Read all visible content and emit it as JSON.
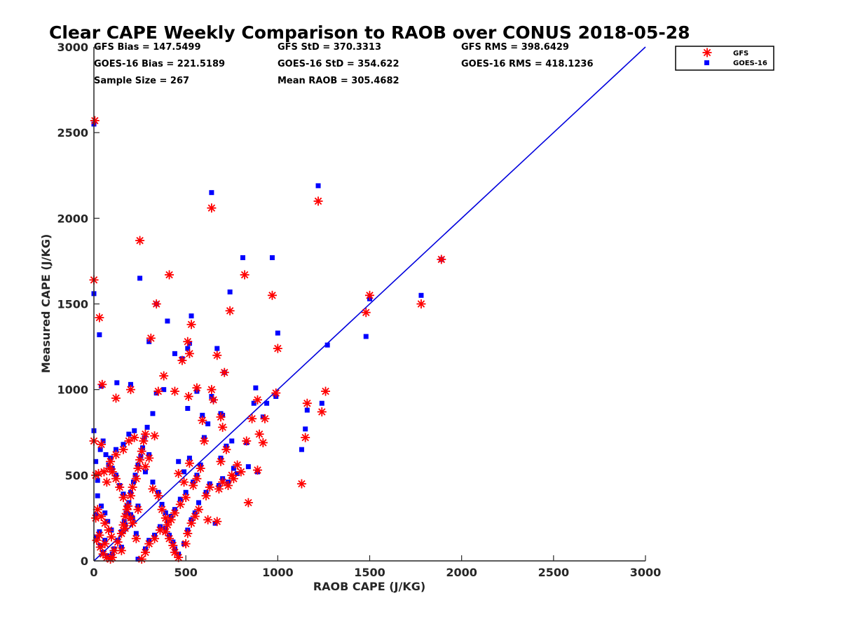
{
  "chart_data": {
    "type": "scatter",
    "title": "Clear CAPE Weekly Comparison to RAOB over CONUS 2018-05-28",
    "xlabel": "RAOB CAPE (J/KG)",
    "ylabel": "Measured CAPE (J/KG)",
    "xlim": [
      0,
      3000
    ],
    "ylim": [
      0,
      3000
    ],
    "xticks": [
      "0",
      "500",
      "1000",
      "1500",
      "2000",
      "2500",
      "3000"
    ],
    "yticks": [
      "0",
      "500",
      "1000",
      "1500",
      "2000",
      "2500",
      "3000"
    ],
    "grid": false,
    "legend_position": "top-right",
    "stats": [
      "GFS Bias = 147.5499",
      "GFS StD = 370.3313",
      "GFS RMS = 398.6429",
      "GOES-16 Bias = 221.5189",
      "GOES-16 StD = 354.622",
      "GOES-16 RMS = 418.1236",
      "Sample Size = 267",
      "Mean RAOB = 305.4682"
    ],
    "reference_line": {
      "x": [
        0,
        3000
      ],
      "y": [
        0,
        3000
      ],
      "color": "#0000dd"
    },
    "series": [
      {
        "name": "GFS",
        "marker": "asterisk",
        "color": "#ff0000",
        "points": [
          [
            5,
            2570
          ],
          [
            0,
            1640
          ],
          [
            30,
            1420
          ],
          [
            45,
            1030
          ],
          [
            0,
            700
          ],
          [
            10,
            500
          ],
          [
            25,
            510
          ],
          [
            40,
            680
          ],
          [
            55,
            520
          ],
          [
            70,
            460
          ],
          [
            85,
            540
          ],
          [
            20,
            300
          ],
          [
            40,
            260
          ],
          [
            60,
            220
          ],
          [
            80,
            180
          ],
          [
            95,
            140
          ],
          [
            15,
            120
          ],
          [
            35,
            80
          ],
          [
            50,
            40
          ],
          [
            70,
            20
          ],
          [
            90,
            10
          ],
          [
            110,
            60
          ],
          [
            130,
            110
          ],
          [
            150,
            160
          ],
          [
            160,
            210
          ],
          [
            170,
            260
          ],
          [
            185,
            320
          ],
          [
            200,
            380
          ],
          [
            210,
            430
          ],
          [
            230,
            480
          ],
          [
            240,
            540
          ],
          [
            250,
            590
          ],
          [
            260,
            640
          ],
          [
            270,
            700
          ],
          [
            280,
            740
          ],
          [
            120,
            950
          ],
          [
            200,
            1000
          ],
          [
            250,
            1870
          ],
          [
            310,
            1300
          ],
          [
            340,
            1500
          ],
          [
            410,
            1670
          ],
          [
            380,
            1080
          ],
          [
            350,
            990
          ],
          [
            330,
            730
          ],
          [
            300,
            600
          ],
          [
            280,
            550
          ],
          [
            320,
            420
          ],
          [
            350,
            380
          ],
          [
            370,
            300
          ],
          [
            390,
            250
          ],
          [
            360,
            180
          ],
          [
            330,
            130
          ],
          [
            300,
            100
          ],
          [
            280,
            50
          ],
          [
            260,
            10
          ],
          [
            230,
            130
          ],
          [
            210,
            220
          ],
          [
            180,
            300
          ],
          [
            160,
            370
          ],
          [
            140,
            430
          ],
          [
            120,
            480
          ],
          [
            100,
            520
          ],
          [
            90,
            580
          ],
          [
            120,
            620
          ],
          [
            160,
            650
          ],
          [
            190,
            700
          ],
          [
            220,
            720
          ],
          [
            440,
            990
          ],
          [
            480,
            1170
          ],
          [
            510,
            1280
          ],
          [
            520,
            1210
          ],
          [
            530,
            1380
          ],
          [
            515,
            960
          ],
          [
            560,
            1010
          ],
          [
            590,
            820
          ],
          [
            600,
            700
          ],
          [
            580,
            540
          ],
          [
            560,
            480
          ],
          [
            540,
            440
          ],
          [
            500,
            370
          ],
          [
            470,
            330
          ],
          [
            440,
            280
          ],
          [
            420,
            240
          ],
          [
            400,
            210
          ],
          [
            390,
            170
          ],
          [
            410,
            130
          ],
          [
            430,
            90
          ],
          [
            440,
            50
          ],
          [
            460,
            20
          ],
          [
            500,
            100
          ],
          [
            510,
            160
          ],
          [
            530,
            220
          ],
          [
            550,
            260
          ],
          [
            570,
            300
          ],
          [
            610,
            380
          ],
          [
            630,
            430
          ],
          [
            640,
            2060
          ],
          [
            640,
            1000
          ],
          [
            650,
            940
          ],
          [
            670,
            1200
          ],
          [
            690,
            840
          ],
          [
            700,
            780
          ],
          [
            710,
            1100
          ],
          [
            740,
            1460
          ],
          [
            720,
            650
          ],
          [
            690,
            580
          ],
          [
            680,
            420
          ],
          [
            700,
            460
          ],
          [
            730,
            440
          ],
          [
            760,
            480
          ],
          [
            780,
            560
          ],
          [
            800,
            520
          ],
          [
            820,
            1670
          ],
          [
            830,
            700
          ],
          [
            840,
            340
          ],
          [
            860,
            830
          ],
          [
            890,
            940
          ],
          [
            900,
            740
          ],
          [
            920,
            690
          ],
          [
            930,
            830
          ],
          [
            970,
            1550
          ],
          [
            990,
            980
          ],
          [
            1000,
            1240
          ],
          [
            1130,
            450
          ],
          [
            1150,
            720
          ],
          [
            1160,
            920
          ],
          [
            1240,
            870
          ],
          [
            1260,
            990
          ],
          [
            1220,
            2100
          ],
          [
            1480,
            1450
          ],
          [
            1500,
            1550
          ],
          [
            1780,
            1500
          ],
          [
            1890,
            1760
          ],
          [
            620,
            240
          ],
          [
            670,
            230
          ],
          [
            750,
            500
          ],
          [
            890,
            530
          ],
          [
            490,
            460
          ],
          [
            460,
            510
          ],
          [
            520,
            570
          ],
          [
            240,
            300
          ],
          [
            200,
            250
          ],
          [
            170,
            190
          ],
          [
            150,
            60
          ],
          [
            100,
            20
          ],
          [
            10,
            250
          ],
          [
            30,
            150
          ],
          [
            60,
            100
          ]
        ]
      },
      {
        "name": "GOES-16",
        "marker": "square",
        "color": "#0000ff",
        "points": [
          [
            0,
            2550
          ],
          [
            0,
            1560
          ],
          [
            30,
            1320
          ],
          [
            40,
            1020
          ],
          [
            0,
            760
          ],
          [
            10,
            580
          ],
          [
            20,
            470
          ],
          [
            35,
            650
          ],
          [
            50,
            700
          ],
          [
            65,
            620
          ],
          [
            80,
            560
          ],
          [
            20,
            380
          ],
          [
            40,
            320
          ],
          [
            60,
            280
          ],
          [
            75,
            230
          ],
          [
            95,
            180
          ],
          [
            15,
            140
          ],
          [
            35,
            90
          ],
          [
            50,
            50
          ],
          [
            70,
            30
          ],
          [
            90,
            15
          ],
          [
            110,
            70
          ],
          [
            130,
            120
          ],
          [
            150,
            170
          ],
          [
            165,
            230
          ],
          [
            175,
            280
          ],
          [
            190,
            340
          ],
          [
            200,
            400
          ],
          [
            215,
            460
          ],
          [
            225,
            500
          ],
          [
            240,
            560
          ],
          [
            255,
            610
          ],
          [
            265,
            660
          ],
          [
            275,
            720
          ],
          [
            290,
            780
          ],
          [
            125,
            1040
          ],
          [
            200,
            1030
          ],
          [
            250,
            1650
          ],
          [
            300,
            1280
          ],
          [
            340,
            1500
          ],
          [
            400,
            1400
          ],
          [
            380,
            1000
          ],
          [
            340,
            980
          ],
          [
            320,
            860
          ],
          [
            300,
            620
          ],
          [
            280,
            520
          ],
          [
            320,
            460
          ],
          [
            350,
            400
          ],
          [
            370,
            330
          ],
          [
            390,
            280
          ],
          [
            360,
            200
          ],
          [
            330,
            150
          ],
          [
            300,
            120
          ],
          [
            280,
            70
          ],
          [
            240,
            10
          ],
          [
            230,
            160
          ],
          [
            210,
            250
          ],
          [
            180,
            320
          ],
          [
            160,
            390
          ],
          [
            140,
            440
          ],
          [
            120,
            500
          ],
          [
            100,
            540
          ],
          [
            90,
            600
          ],
          [
            120,
            650
          ],
          [
            160,
            680
          ],
          [
            190,
            740
          ],
          [
            220,
            760
          ],
          [
            440,
            1210
          ],
          [
            480,
            1180
          ],
          [
            510,
            1240
          ],
          [
            520,
            1270
          ],
          [
            530,
            1430
          ],
          [
            510,
            890
          ],
          [
            560,
            990
          ],
          [
            590,
            850
          ],
          [
            600,
            720
          ],
          [
            580,
            560
          ],
          [
            560,
            500
          ],
          [
            540,
            460
          ],
          [
            500,
            400
          ],
          [
            470,
            360
          ],
          [
            440,
            300
          ],
          [
            420,
            260
          ],
          [
            400,
            230
          ],
          [
            390,
            190
          ],
          [
            410,
            150
          ],
          [
            430,
            110
          ],
          [
            440,
            70
          ],
          [
            460,
            40
          ],
          [
            490,
            100
          ],
          [
            510,
            180
          ],
          [
            530,
            240
          ],
          [
            550,
            280
          ],
          [
            570,
            340
          ],
          [
            610,
            400
          ],
          [
            630,
            450
          ],
          [
            640,
            2150
          ],
          [
            640,
            960
          ],
          [
            650,
            940
          ],
          [
            670,
            1240
          ],
          [
            690,
            860
          ],
          [
            700,
            850
          ],
          [
            710,
            1100
          ],
          [
            740,
            1570
          ],
          [
            720,
            670
          ],
          [
            690,
            600
          ],
          [
            680,
            440
          ],
          [
            700,
            480
          ],
          [
            730,
            460
          ],
          [
            760,
            540
          ],
          [
            780,
            510
          ],
          [
            810,
            1770
          ],
          [
            830,
            690
          ],
          [
            840,
            550
          ],
          [
            870,
            920
          ],
          [
            880,
            1010
          ],
          [
            920,
            840
          ],
          [
            940,
            920
          ],
          [
            970,
            1770
          ],
          [
            990,
            960
          ],
          [
            1000,
            1330
          ],
          [
            1130,
            650
          ],
          [
            1150,
            770
          ],
          [
            1160,
            880
          ],
          [
            1240,
            920
          ],
          [
            1270,
            1260
          ],
          [
            1220,
            2190
          ],
          [
            1480,
            1310
          ],
          [
            1500,
            1530
          ],
          [
            1780,
            1550
          ],
          [
            1890,
            1760
          ],
          [
            620,
            800
          ],
          [
            660,
            220
          ],
          [
            750,
            700
          ],
          [
            890,
            520
          ],
          [
            490,
            520
          ],
          [
            460,
            580
          ],
          [
            520,
            600
          ],
          [
            240,
            320
          ],
          [
            200,
            270
          ],
          [
            170,
            210
          ],
          [
            150,
            80
          ],
          [
            100,
            40
          ],
          [
            10,
            270
          ],
          [
            30,
            170
          ],
          [
            60,
            120
          ]
        ]
      }
    ]
  }
}
